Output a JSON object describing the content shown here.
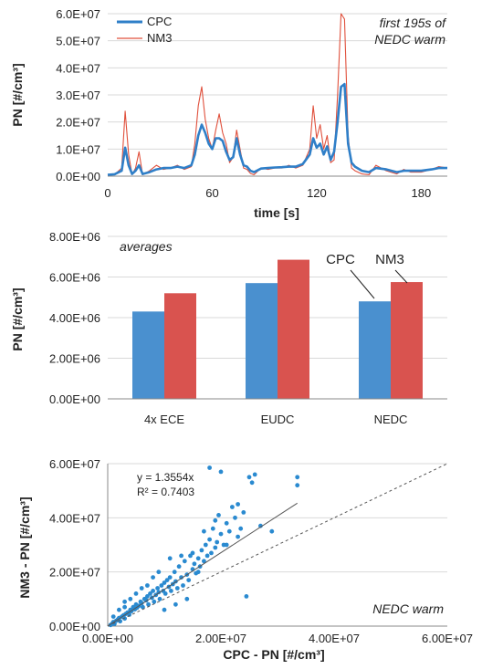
{
  "chart_data": [
    {
      "type": "line",
      "annotation": [
        "first 195s of",
        "NEDC warm"
      ],
      "xlabel": "time [s]",
      "ylabel": "PN [#/cm³]",
      "xlim": [
        0,
        195
      ],
      "ylim": [
        0,
        60000000
      ],
      "xticks": [
        "0",
        "60",
        "120",
        "180"
      ],
      "yticks": [
        "0.0E+00",
        "1.0E+07",
        "2.0E+07",
        "3.0E+07",
        "4.0E+07",
        "5.0E+07",
        "6.0E+07"
      ],
      "legend_position": "top-left",
      "series": [
        {
          "name": "CPC",
          "color": "#2f7fc8",
          "x": [
            0,
            4,
            8,
            10,
            12,
            14,
            16,
            18,
            20,
            24,
            28,
            32,
            36,
            40,
            44,
            48,
            50,
            52,
            54,
            56,
            58,
            60,
            62,
            64,
            66,
            68,
            70,
            72,
            74,
            76,
            78,
            80,
            82,
            84,
            88,
            92,
            96,
            100,
            104,
            108,
            112,
            116,
            118,
            120,
            122,
            124,
            126,
            128,
            130,
            132,
            134,
            136,
            138,
            140,
            142,
            146,
            150,
            154,
            160,
            166,
            170,
            174,
            180,
            186,
            190,
            195
          ],
          "y": [
            500000,
            700000,
            2000000,
            10500000,
            4000000,
            800000,
            2000000,
            4000000,
            800000,
            1500000,
            2500000,
            3000000,
            3000000,
            3500000,
            3000000,
            4000000,
            8000000,
            15000000,
            19000000,
            16000000,
            12000000,
            10000000,
            14000000,
            14000000,
            13000000,
            9000000,
            6000000,
            7000000,
            14000000,
            8000000,
            4000000,
            3500000,
            2000000,
            1500000,
            2800000,
            3000000,
            3200000,
            3300000,
            3500000,
            3500000,
            4500000,
            8000000,
            14000000,
            10500000,
            12000000,
            8000000,
            11000000,
            6000000,
            9000000,
            20000000,
            33000000,
            34000000,
            12000000,
            5000000,
            3500000,
            2000000,
            1500000,
            3000000,
            2500000,
            1500000,
            2000000,
            2000000,
            2000000,
            2500000,
            3000000,
            3000000
          ]
        },
        {
          "name": "NM3",
          "color": "#e0503c",
          "x": [
            0,
            4,
            8,
            10,
            12,
            14,
            16,
            18,
            20,
            24,
            28,
            32,
            36,
            40,
            44,
            48,
            50,
            52,
            54,
            56,
            58,
            60,
            62,
            64,
            66,
            68,
            70,
            72,
            74,
            76,
            78,
            80,
            82,
            84,
            88,
            92,
            96,
            100,
            104,
            108,
            112,
            116,
            118,
            120,
            122,
            124,
            126,
            128,
            130,
            132,
            134,
            136,
            138,
            140,
            142,
            146,
            150,
            154,
            160,
            166,
            170,
            174,
            180,
            186,
            190,
            195
          ],
          "y": [
            300000,
            600000,
            3000000,
            24000000,
            8000000,
            500000,
            3000000,
            9000000,
            500000,
            2000000,
            4000000,
            2500000,
            3000000,
            4000000,
            2500000,
            3500000,
            12000000,
            26000000,
            33000000,
            21000000,
            14000000,
            10000000,
            17000000,
            23000000,
            16000000,
            12000000,
            5000000,
            7000000,
            17000000,
            10000000,
            3000000,
            2500000,
            1000000,
            500000,
            3000000,
            2500000,
            3000000,
            3000000,
            4000000,
            3000000,
            4000000,
            10000000,
            26000000,
            14000000,
            19000000,
            10000000,
            15000000,
            5000000,
            6000000,
            30000000,
            62000000,
            58000000,
            15000000,
            3000000,
            2000000,
            800000,
            500000,
            4000000,
            2000000,
            800000,
            2500000,
            1500000,
            1500000,
            2500000,
            3500000,
            3000000
          ]
        }
      ]
    },
    {
      "type": "bar",
      "annotation": "averages",
      "ylabel": "PN [#/cm³]",
      "ylim": [
        0,
        8000000
      ],
      "yticks": [
        "0.00E+00",
        "2.00E+06",
        "4.00E+06",
        "6.00E+06",
        "8.00E+06"
      ],
      "categories": [
        "4x ECE",
        "EUDC",
        "NEDC"
      ],
      "series": [
        {
          "name": "CPC",
          "color": "#4a90cf",
          "values": [
            4300000,
            5700000,
            4800000
          ]
        },
        {
          "name": "NM3",
          "color": "#d9534f",
          "values": [
            5200000,
            6850000,
            5750000
          ]
        }
      ],
      "callout_labels": [
        "CPC",
        "NM3"
      ]
    },
    {
      "type": "scatter",
      "annotation": "NEDC warm",
      "xlabel": "CPC - PN [#/cm³]",
      "ylabel": "NM3  - PN [#/cm³]",
      "xlim": [
        0,
        60000000
      ],
      "ylim": [
        0,
        60000000
      ],
      "xticks": [
        "0.00E+00",
        "2.00E+07",
        "4.00E+07",
        "6.00E+07"
      ],
      "yticks": [
        "0.00E+00",
        "2.00E+07",
        "4.00E+07",
        "6.00E+07"
      ],
      "equation": "y = 1.3554x",
      "r2": "R² = 0.7403",
      "trend_slope": 1.3554,
      "point_color": "#2a8ad0",
      "points": [
        [
          500000,
          400000
        ],
        [
          800000,
          900000
        ],
        [
          1000000,
          1500000
        ],
        [
          1200000,
          800000
        ],
        [
          1500000,
          2000000
        ],
        [
          1800000,
          2500000
        ],
        [
          2000000,
          3000000
        ],
        [
          2200000,
          1800000
        ],
        [
          2500000,
          3500000
        ],
        [
          2800000,
          4000000
        ],
        [
          3000000,
          2800000
        ],
        [
          3200000,
          4500000
        ],
        [
          3500000,
          5000000
        ],
        [
          3800000,
          4200000
        ],
        [
          4000000,
          6000000
        ],
        [
          4200000,
          5500000
        ],
        [
          4500000,
          7000000
        ],
        [
          4800000,
          6200000
        ],
        [
          5000000,
          8000000
        ],
        [
          5200000,
          6800000
        ],
        [
          5500000,
          7500000
        ],
        [
          5800000,
          9000000
        ],
        [
          6000000,
          8500000
        ],
        [
          6200000,
          7000000
        ],
        [
          6500000,
          10000000
        ],
        [
          6800000,
          9500000
        ],
        [
          7000000,
          11000000
        ],
        [
          7200000,
          8000000
        ],
        [
          7500000,
          12000000
        ],
        [
          7800000,
          10500000
        ],
        [
          8000000,
          13000000
        ],
        [
          8200000,
          9000000
        ],
        [
          8500000,
          11500000
        ],
        [
          8800000,
          14000000
        ],
        [
          9000000,
          12500000
        ],
        [
          9200000,
          10000000
        ],
        [
          9500000,
          15000000
        ],
        [
          9800000,
          13000000
        ],
        [
          10000000,
          16000000
        ],
        [
          10200000,
          12000000
        ],
        [
          10500000,
          17000000
        ],
        [
          10800000,
          14500000
        ],
        [
          11000000,
          18000000
        ],
        [
          11200000,
          13000000
        ],
        [
          11500000,
          15500000
        ],
        [
          11800000,
          20000000
        ],
        [
          12000000,
          16500000
        ],
        [
          12300000,
          14000000
        ],
        [
          12600000,
          22000000
        ],
        [
          13000000,
          18000000
        ],
        [
          13300000,
          15000000
        ],
        [
          13600000,
          24000000
        ],
        [
          14000000,
          19000000
        ],
        [
          14300000,
          17000000
        ],
        [
          14600000,
          26000000
        ],
        [
          15000000,
          21000000
        ],
        [
          15300000,
          23000000
        ],
        [
          15600000,
          19500000
        ],
        [
          16000000,
          25000000
        ],
        [
          16300000,
          22000000
        ],
        [
          16600000,
          28000000
        ],
        [
          17000000,
          24000000
        ],
        [
          17300000,
          30000000
        ],
        [
          17600000,
          26000000
        ],
        [
          18000000,
          32000000
        ],
        [
          18300000,
          27000000
        ],
        [
          18600000,
          36000000
        ],
        [
          19000000,
          29000000
        ],
        [
          19300000,
          31000000
        ],
        [
          19600000,
          41000000
        ],
        [
          20000000,
          34000000
        ],
        [
          20500000,
          30000000
        ],
        [
          21000000,
          38000000
        ],
        [
          21500000,
          35000000
        ],
        [
          22000000,
          44000000
        ],
        [
          22500000,
          40000000
        ],
        [
          23000000,
          33000000
        ],
        [
          23500000,
          36000000
        ],
        [
          24000000,
          42000000
        ],
        [
          24500000,
          11000000
        ],
        [
          25000000,
          55000000
        ],
        [
          25500000,
          53000000
        ],
        [
          26000000,
          56000000
        ],
        [
          27000000,
          37000000
        ],
        [
          18000000,
          58500000
        ],
        [
          20000000,
          57000000
        ],
        [
          29000000,
          35000000
        ],
        [
          33500000,
          55000000
        ],
        [
          33500000,
          52000000
        ],
        [
          3000000,
          9000000
        ],
        [
          5000000,
          12000000
        ],
        [
          7000000,
          15000000
        ],
        [
          9000000,
          20000000
        ],
        [
          11000000,
          25000000
        ],
        [
          13000000,
          26000000
        ],
        [
          15000000,
          27000000
        ],
        [
          2000000,
          6000000
        ],
        [
          4000000,
          10000000
        ],
        [
          6000000,
          14000000
        ],
        [
          8000000,
          18000000
        ],
        [
          10000000,
          6000000
        ],
        [
          12000000,
          8000000
        ],
        [
          14000000,
          10000000
        ],
        [
          1000000,
          3500000
        ],
        [
          3000000,
          7000000
        ],
        [
          16000000,
          20000000
        ],
        [
          17000000,
          35000000
        ],
        [
          19000000,
          39000000
        ],
        [
          21000000,
          30000000
        ],
        [
          23000000,
          45000000
        ]
      ]
    }
  ]
}
